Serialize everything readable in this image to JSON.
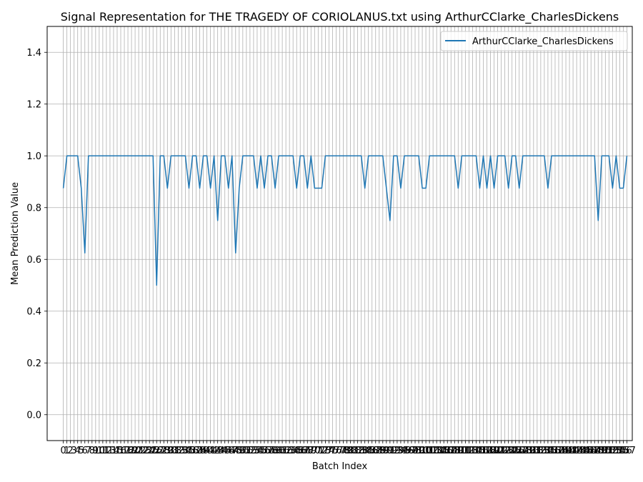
{
  "chart_data": {
    "type": "line",
    "title": "Signal Representation for THE TRAGEDY OF CORIOLANUS.txt using ArthurCClarke_CharlesDickens",
    "xlabel": "Batch Index",
    "ylabel": "Mean Prediction Value",
    "ylim": [
      -0.1,
      1.5
    ],
    "xlim": [
      -4.5,
      158.5
    ],
    "yticks": [
      0.0,
      0.2,
      0.4,
      0.6,
      0.8,
      1.0,
      1.2,
      1.4
    ],
    "grid": true,
    "legend_position": "top-right",
    "series": [
      {
        "name": "ArthurCClarke_CharlesDickens",
        "color": "#1f77b4",
        "values": [
          0.875,
          1.0,
          1.0,
          1.0,
          1.0,
          0.875,
          0.625,
          1.0,
          1.0,
          1.0,
          1.0,
          1.0,
          1.0,
          1.0,
          1.0,
          1.0,
          1.0,
          1.0,
          1.0,
          1.0,
          1.0,
          1.0,
          1.0,
          1.0,
          1.0,
          1.0,
          0.5,
          1.0,
          1.0,
          0.875,
          1.0,
          1.0,
          1.0,
          1.0,
          1.0,
          0.875,
          1.0,
          1.0,
          0.875,
          1.0,
          1.0,
          0.875,
          1.0,
          0.75,
          1.0,
          1.0,
          0.875,
          1.0,
          0.625,
          0.875,
          1.0,
          1.0,
          1.0,
          1.0,
          0.875,
          1.0,
          0.875,
          1.0,
          1.0,
          0.875,
          1.0,
          1.0,
          1.0,
          1.0,
          1.0,
          0.875,
          1.0,
          1.0,
          0.875,
          1.0,
          0.875,
          0.875,
          0.875,
          1.0,
          1.0,
          1.0,
          1.0,
          1.0,
          1.0,
          1.0,
          1.0,
          1.0,
          1.0,
          1.0,
          0.875,
          1.0,
          1.0,
          1.0,
          1.0,
          1.0,
          0.875,
          0.75,
          1.0,
          1.0,
          0.875,
          1.0,
          1.0,
          1.0,
          1.0,
          1.0,
          0.875,
          0.875,
          1.0,
          1.0,
          1.0,
          1.0,
          1.0,
          1.0,
          1.0,
          1.0,
          0.875,
          1.0,
          1.0,
          1.0,
          1.0,
          1.0,
          0.875,
          1.0,
          0.875,
          1.0,
          0.875,
          1.0,
          1.0,
          1.0,
          0.875,
          1.0,
          1.0,
          0.875,
          1.0,
          1.0,
          1.0,
          1.0,
          1.0,
          1.0,
          1.0,
          0.875,
          1.0,
          1.0,
          1.0,
          1.0,
          1.0,
          1.0,
          1.0,
          1.0,
          1.0,
          1.0,
          1.0,
          1.0,
          1.0,
          0.75,
          1.0,
          1.0,
          1.0,
          0.875,
          1.0,
          0.875,
          0.875,
          1.0
        ]
      }
    ]
  }
}
